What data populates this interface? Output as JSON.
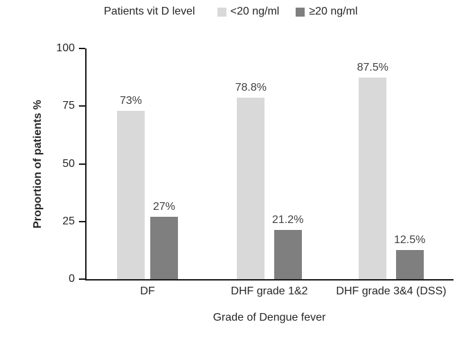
{
  "chart_data": {
    "type": "bar",
    "legend_title": "Patients vit D level",
    "categories": [
      "DF",
      "DHF grade 1&2",
      "DHF grade 3&4 (DSS)"
    ],
    "series": [
      {
        "name": "<20 ng/ml",
        "color": "#d9d9d9",
        "values": [
          73,
          78.8,
          87.5
        ],
        "labels": [
          "73%",
          "78.8%",
          "87.5%"
        ]
      },
      {
        "name": "≥20 ng/ml",
        "color": "#7f7f7f",
        "values": [
          27,
          21.2,
          12.5
        ],
        "labels": [
          "27%",
          "21.2%",
          "12.5%"
        ]
      }
    ],
    "xlabel": "Grade of Dengue fever",
    "ylabel": "Proportion of patients %",
    "ylim": [
      0,
      100
    ],
    "yticks": [
      0,
      25,
      50,
      75,
      100
    ],
    "grid": false,
    "legend_position": "top",
    "axis_color": "#1a1a1a",
    "text_color": "#262626",
    "value_label_color": "#3f3f3f"
  }
}
